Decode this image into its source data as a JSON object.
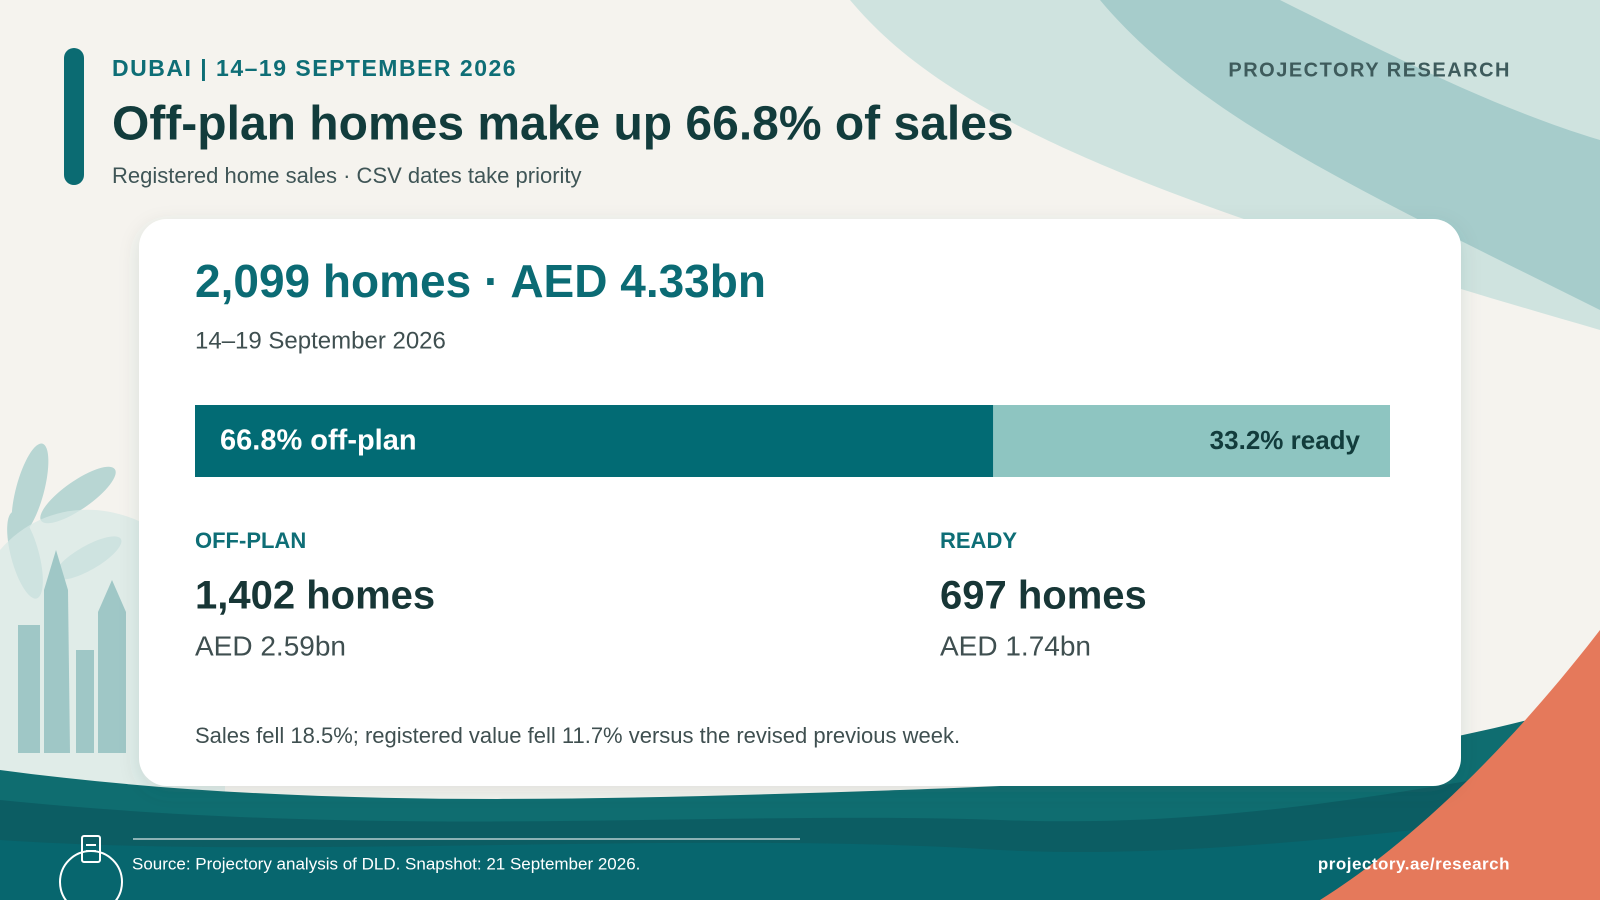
{
  "header": {
    "kicker": "DUBAI | 14–19 SEPTEMBER 2026",
    "brand": "PROJECTORY RESEARCH",
    "title": "Off-plan homes make up 66.8% of sales",
    "subtitle": "Registered home sales · CSV dates take priority"
  },
  "card": {
    "headline": "2,099 homes · AED 4.33bn",
    "period": "14–19 September 2026",
    "segments": [
      {
        "label": "OFF-PLAN",
        "homes": "1,402 homes",
        "value": "AED 2.59bn"
      },
      {
        "label": "READY",
        "homes": "697 homes",
        "value": "AED 1.74bn"
      }
    ],
    "note": "Sales fell 18.5%; registered value fell 11.7% versus the revised previous week."
  },
  "chart_data": {
    "type": "bar",
    "stacked": true,
    "orientation": "horizontal",
    "xlim": [
      0,
      100
    ],
    "series": [
      {
        "color": "#026b74",
        "label_color": "#ffffff",
        "values": [
          66.8
        ],
        "value_labels": [
          "66.8% off-plan"
        ]
      },
      {
        "color": "#8ec5c1",
        "label_color": "#123c3c",
        "values": [
          33.2
        ],
        "value_labels": [
          "33.2% ready"
        ]
      }
    ]
  },
  "footer": {
    "source": "Source: Projectory analysis of DLD. Snapshot: 21 September 2026.",
    "url": "projectory.ae/research"
  }
}
